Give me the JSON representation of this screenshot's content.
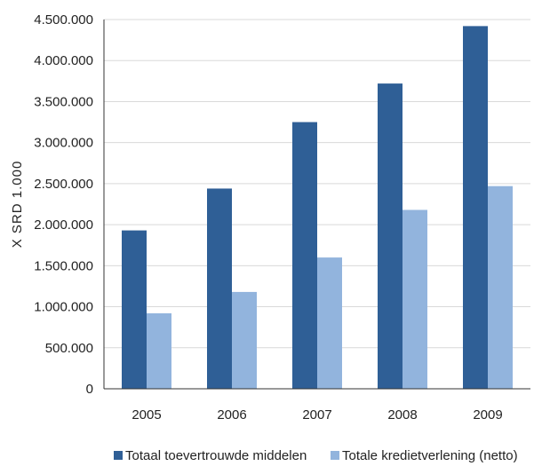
{
  "chart_data": {
    "type": "bar",
    "title": "",
    "xlabel": "",
    "ylabel": "X SRD 1.000",
    "categories": [
      "2005",
      "2006",
      "2007",
      "2008",
      "2009"
    ],
    "series": [
      {
        "name": "Totaal toevertrouwde middelen",
        "color": "#2f5f96",
        "values": [
          1930000,
          2440000,
          3250000,
          3720000,
          4420000
        ]
      },
      {
        "name": "Totale kredietverlening (netto)",
        "color": "#92b4dd",
        "values": [
          920000,
          1180000,
          1600000,
          2180000,
          2470000
        ]
      }
    ],
    "ylim": [
      0,
      4500000
    ],
    "yticks": [
      0,
      500000,
      1000000,
      1500000,
      2000000,
      2500000,
      3000000,
      3500000,
      4000000,
      4500000
    ],
    "ytick_labels": [
      "0",
      "500.000",
      "1.000.000",
      "1.500.000",
      "2.000.000",
      "2.500.000",
      "3.000.000",
      "3.500.000",
      "4.000.000",
      "4.500.000"
    ],
    "grid": true,
    "legend_position": "bottom"
  }
}
